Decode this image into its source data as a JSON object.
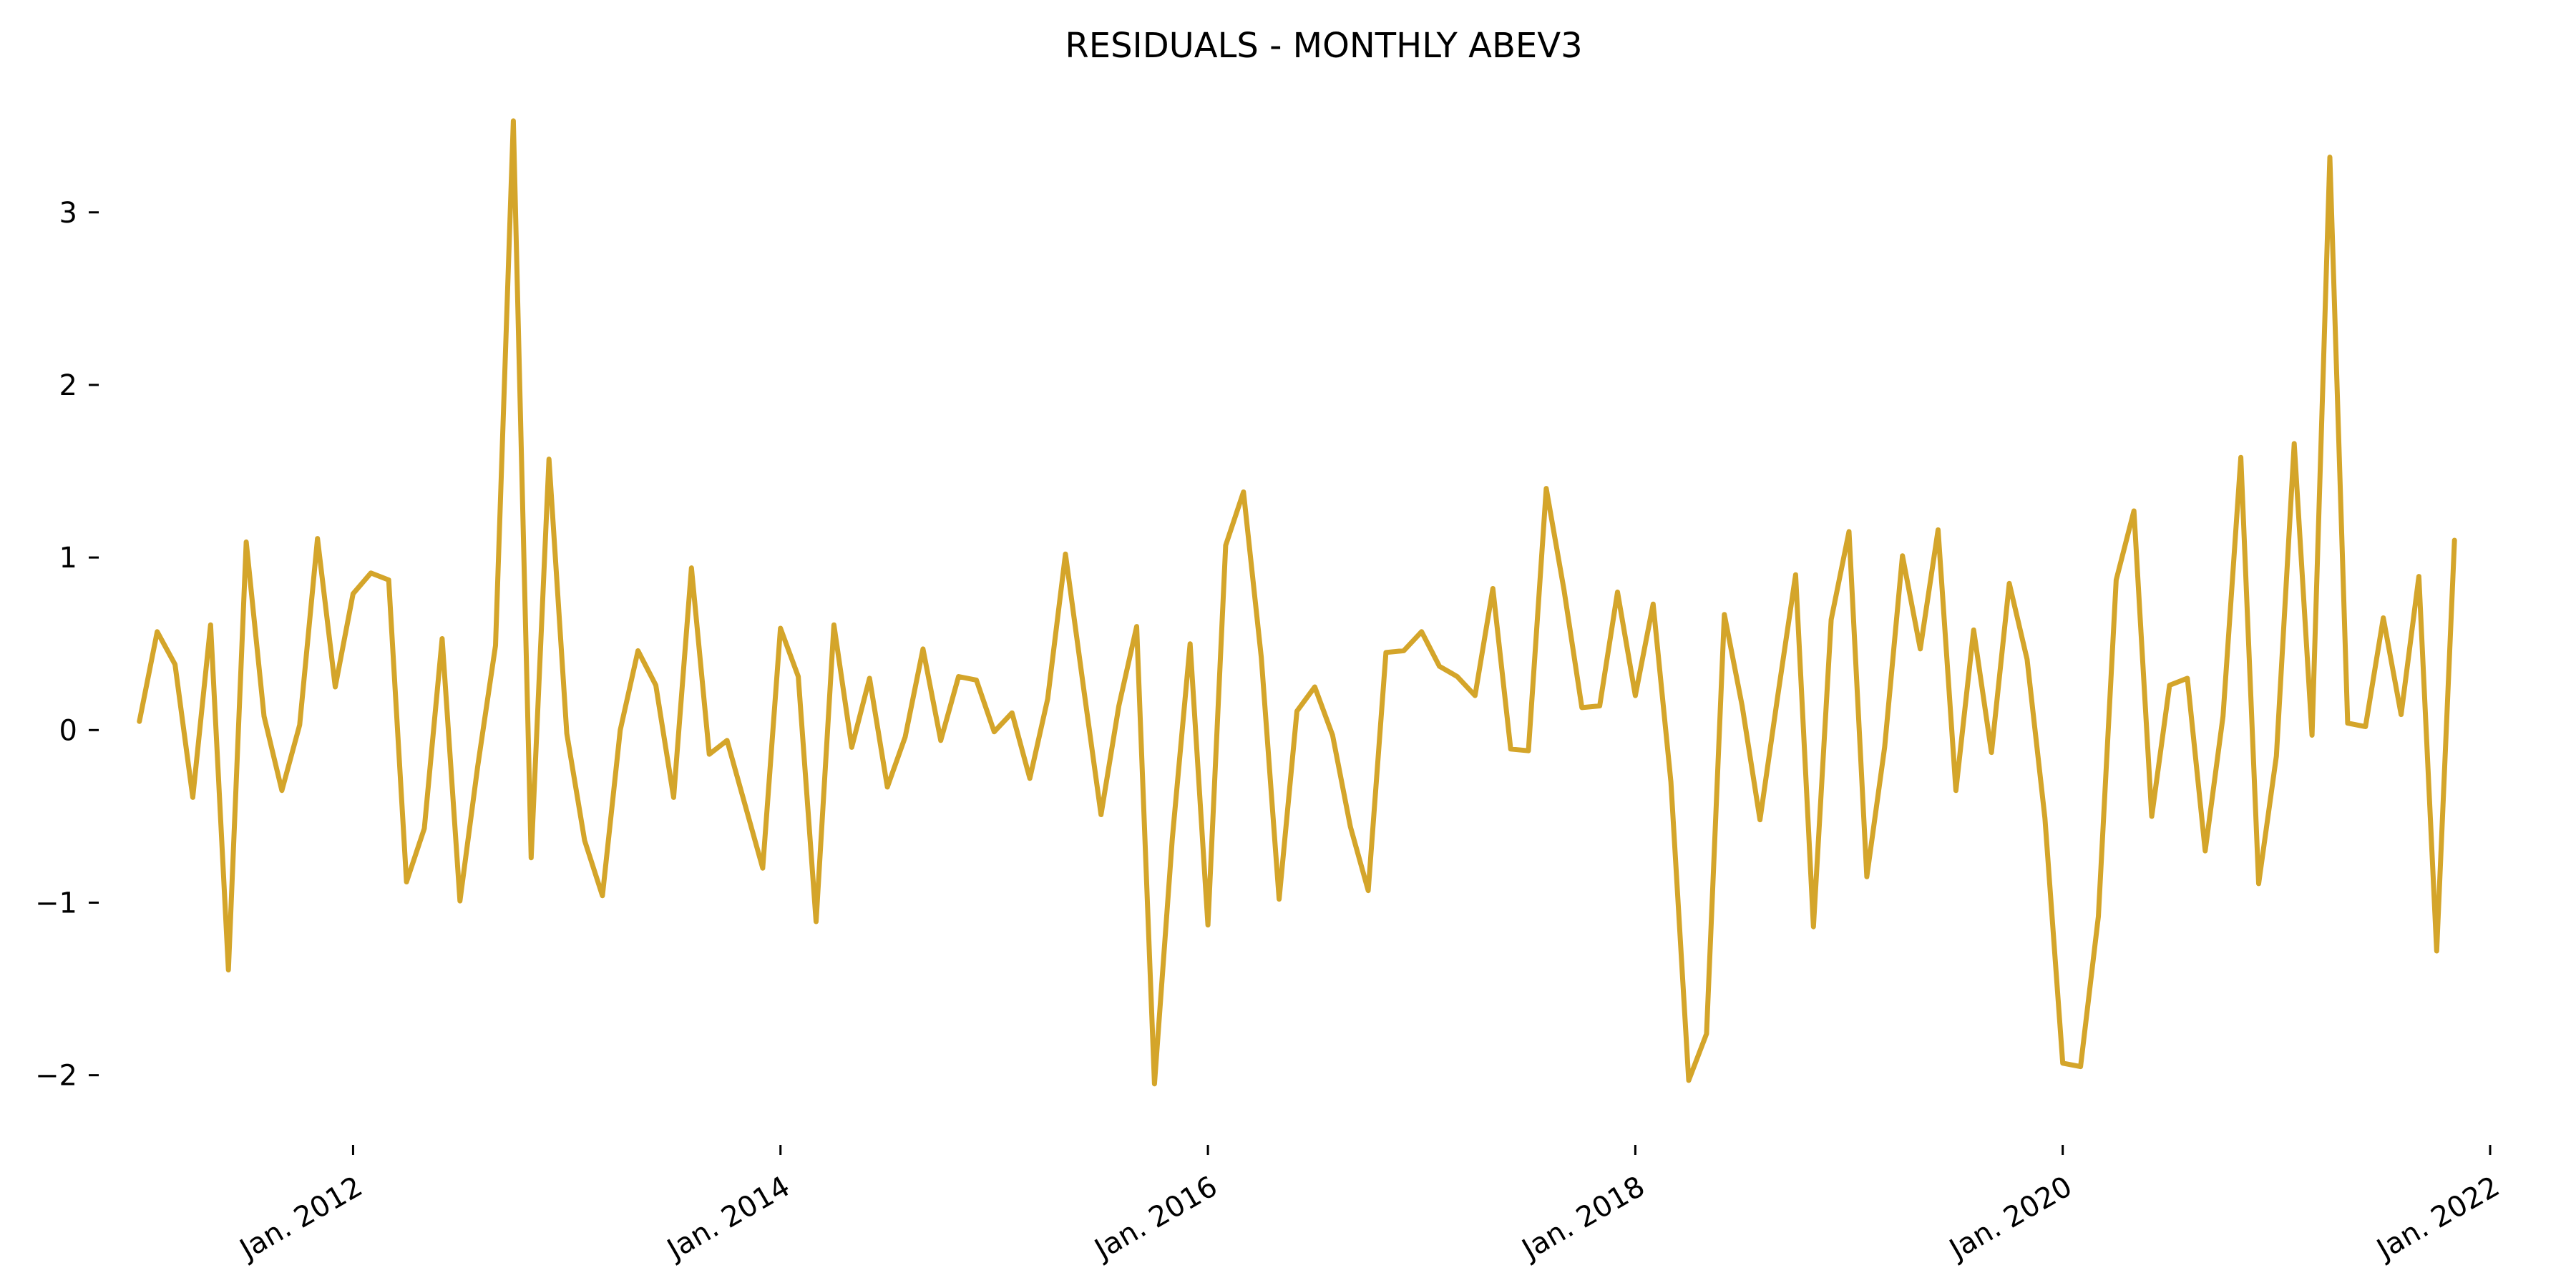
{
  "chart_data": {
    "type": "line",
    "title": "RESIDUALS - MONTHLY ABEV3",
    "xlabel": "",
    "ylabel": "",
    "x_start": "2011-01",
    "x_frequency": "monthly",
    "xlim": [
      "2010-11",
      "2022-01"
    ],
    "ylim": [
      -2.3,
      3.65
    ],
    "x_ticks": [
      {
        "label": "Jan. 2012",
        "date": "2012-01"
      },
      {
        "label": "Jan. 2014",
        "date": "2014-01"
      },
      {
        "label": "Jan. 2016",
        "date": "2016-01"
      },
      {
        "label": "Jan. 2018",
        "date": "2018-01"
      },
      {
        "label": "Jan. 2020",
        "date": "2020-01"
      },
      {
        "label": "Jan. 2022",
        "date": "2022-01"
      }
    ],
    "y_ticks": [
      {
        "label": "3",
        "value": 3
      },
      {
        "label": "2",
        "value": 2
      },
      {
        "label": "1",
        "value": 1
      },
      {
        "label": "0",
        "value": 0
      },
      {
        "label": "−1",
        "value": -1
      },
      {
        "label": "−2",
        "value": -2
      }
    ],
    "grid": false,
    "color": "#D4A52A",
    "series": [
      {
        "values": [
          0.05,
          0.57,
          0.38,
          -0.39,
          0.61,
          -1.39,
          1.09,
          0.08,
          -0.35,
          0.03,
          1.11,
          0.25,
          0.79,
          0.91,
          0.87,
          -0.88,
          -0.57,
          0.53,
          -0.99,
          -0.21,
          0.49,
          3.53,
          -0.74,
          1.57,
          -0.02,
          -0.64,
          -0.96,
          0.0,
          0.46,
          0.26,
          -0.39,
          0.94,
          -0.14,
          -0.06,
          -0.43,
          -0.8,
          0.59,
          0.31,
          -1.11,
          0.61,
          -0.1,
          0.3,
          -0.33,
          -0.04,
          0.47,
          -0.06,
          0.31,
          0.29,
          -0.01,
          0.1,
          -0.28,
          0.18,
          1.02,
          0.26,
          -0.49,
          0.14,
          0.6,
          -2.05,
          -0.63,
          0.5,
          -1.13,
          1.07,
          1.38,
          0.42,
          -0.98,
          0.11,
          0.25,
          -0.03,
          -0.56,
          -0.93,
          0.45,
          0.46,
          0.57,
          0.37,
          0.31,
          0.2,
          0.82,
          -0.11,
          -0.12,
          1.4,
          0.81,
          0.13,
          0.14,
          0.8,
          0.2,
          0.73,
          -0.3,
          -2.03,
          -1.76,
          0.67,
          0.14,
          -0.52,
          0.2,
          0.9,
          -1.14,
          0.64,
          1.15,
          -0.85,
          -0.1,
          1.01,
          0.47,
          1.16,
          -0.35,
          0.58,
          -0.13,
          0.85,
          0.41,
          -0.51,
          -1.93,
          -1.95,
          -1.08,
          0.87,
          1.27,
          -0.5,
          0.26,
          0.3,
          -0.7,
          0.08,
          1.58,
          -0.89,
          -0.15,
          1.66,
          -0.03,
          3.32,
          0.04,
          0.02,
          0.65,
          0.09,
          0.89,
          -1.28,
          1.1
        ]
      }
    ]
  }
}
